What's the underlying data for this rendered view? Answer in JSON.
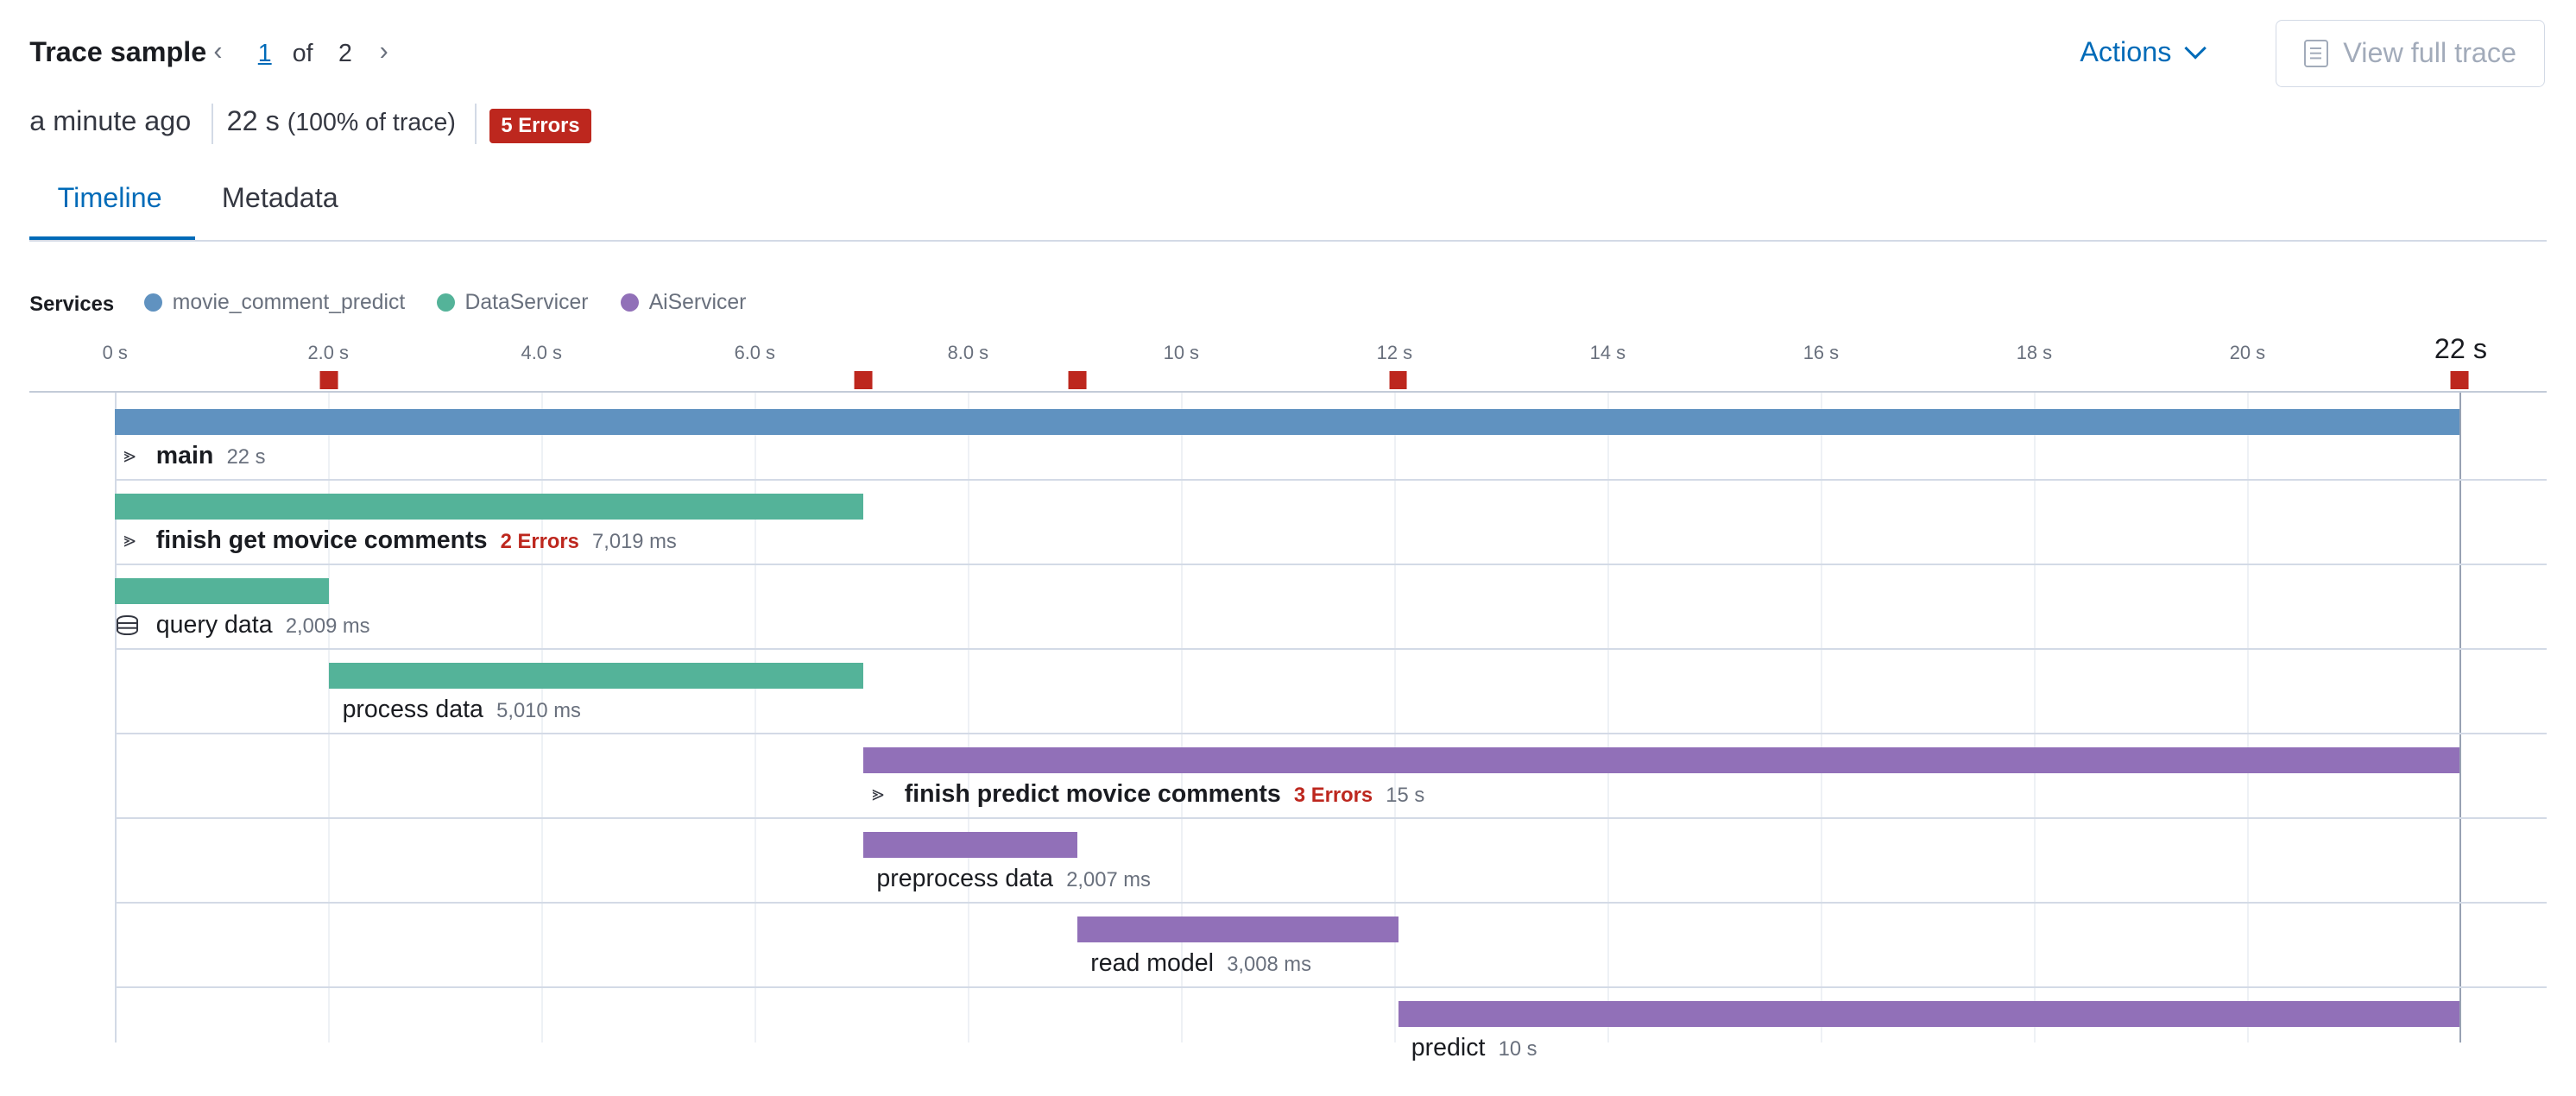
{
  "header": {
    "title": "Trace sample",
    "pager": {
      "current": "1",
      "of_label": "of",
      "total": "2"
    },
    "actions_label": "Actions",
    "view_full_trace_label": "View full trace"
  },
  "summary": {
    "time_ago": "a minute ago",
    "duration": "22 s",
    "percent_of_trace": "(100% of trace)",
    "errors_badge": "5 Errors"
  },
  "tabs": [
    {
      "label": "Timeline",
      "active": true
    },
    {
      "label": "Metadata",
      "active": false
    }
  ],
  "legend": {
    "title": "Services",
    "services": [
      {
        "name": "movie_comment_predict",
        "color": "#6092c0"
      },
      {
        "name": "DataServicer",
        "color": "#54b399"
      },
      {
        "name": "AiServicer",
        "color": "#9170b8"
      }
    ]
  },
  "timeline": {
    "ticks": [
      "0 s",
      "2.0 s",
      "4.0 s",
      "6.0 s",
      "8.0 s",
      "10 s",
      "12 s",
      "14 s",
      "16 s",
      "18 s",
      "20 s",
      "22 s"
    ],
    "error_color": "#bd271e",
    "spans": [
      {
        "name": "main",
        "duration": "22 s",
        "errors": "",
        "icon": "merge-icon",
        "service": 0,
        "bold": true
      },
      {
        "name": "finish get movice comments",
        "duration": "7,019 ms",
        "errors": "2 Errors",
        "icon": "merge-icon",
        "service": 1,
        "bold": true
      },
      {
        "name": "query data",
        "duration": "2,009 ms",
        "errors": "",
        "icon": "database-icon",
        "service": 1,
        "bold": false
      },
      {
        "name": "process data",
        "duration": "5,010 ms",
        "errors": "",
        "icon": "",
        "service": 1,
        "bold": false
      },
      {
        "name": "finish predict movice comments",
        "duration": "15 s",
        "errors": "3 Errors",
        "icon": "merge-icon",
        "service": 2,
        "bold": true
      },
      {
        "name": "preprocess data",
        "duration": "2,007 ms",
        "errors": "",
        "icon": "",
        "service": 2,
        "bold": false
      },
      {
        "name": "read model",
        "duration": "3,008 ms",
        "errors": "",
        "icon": "",
        "service": 2,
        "bold": false
      },
      {
        "name": "predict",
        "duration": "10 s",
        "errors": "",
        "icon": "",
        "service": 2,
        "bold": false
      }
    ]
  }
}
